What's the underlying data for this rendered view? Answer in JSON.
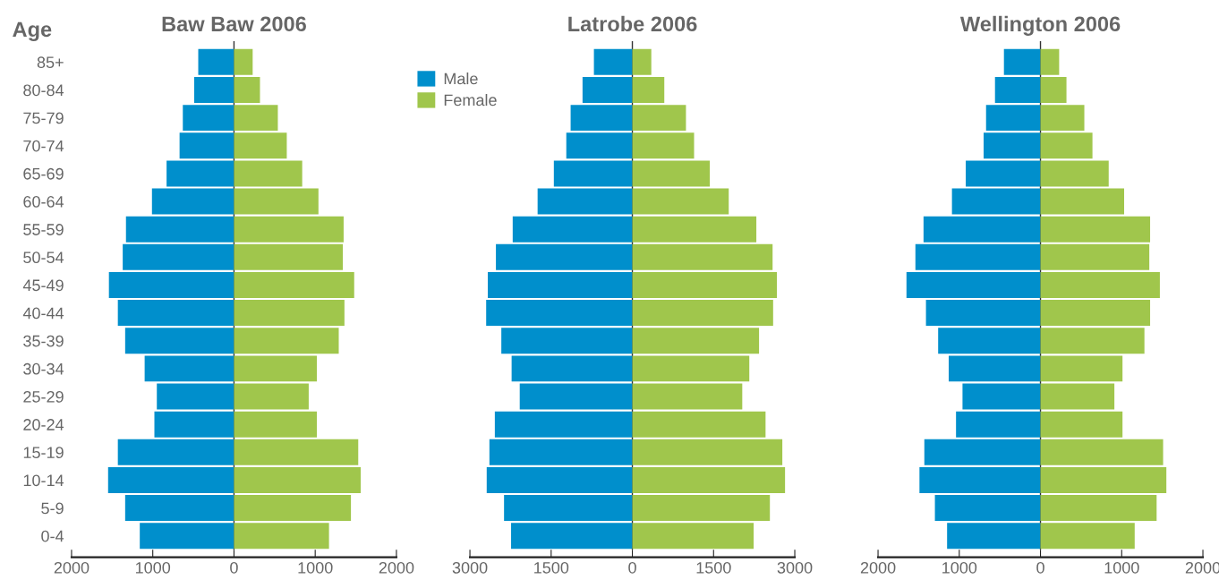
{
  "chart_data": [
    {
      "type": "bar",
      "orientation": "horizontal",
      "stacked": true,
      "title": "Baw Baw 2006",
      "ylabel": "Age",
      "categories": [
        "85+",
        "80-84",
        "75-79",
        "70-74",
        "65-69",
        "60-64",
        "55-59",
        "50-54",
        "45-49",
        "40-44",
        "35-39",
        "30-34",
        "25-29",
        "20-24",
        "15-19",
        "10-14",
        "5-9",
        "0-4"
      ],
      "series": [
        {
          "name": "Male",
          "color": "#008fcc",
          "values": [
            -440,
            -490,
            -630,
            -670,
            -830,
            -1010,
            -1330,
            -1370,
            -1540,
            -1430,
            -1340,
            -1100,
            -950,
            -980,
            -1430,
            -1550,
            -1340,
            -1160
          ]
        },
        {
          "name": "Female",
          "color": "#a0c64c",
          "values": [
            230,
            320,
            540,
            650,
            840,
            1040,
            1350,
            1340,
            1480,
            1360,
            1290,
            1020,
            920,
            1020,
            1530,
            1560,
            1440,
            1170
          ]
        }
      ],
      "xlim": [
        -2000,
        2000
      ],
      "xticks": [
        {
          "value": -2000,
          "label": "2000"
        },
        {
          "value": -1000,
          "label": "1000"
        },
        0,
        1000,
        2000
      ],
      "legend": "right"
    },
    {
      "type": "bar",
      "orientation": "horizontal",
      "stacked": true,
      "title": "Latrobe 2006",
      "categories": [
        null,
        null,
        null,
        null,
        null,
        null,
        null,
        null,
        null,
        null,
        null,
        null,
        null,
        null,
        null,
        null,
        null,
        null
      ],
      "series": [
        {
          "color": "#008fcc",
          "values": [
            -710,
            -920,
            -1140,
            -1220,
            -1450,
            -1750,
            -2210,
            -2520,
            -2670,
            -2700,
            -2420,
            -2230,
            -2080,
            -2540,
            -2640,
            -2690,
            -2370,
            -2240
          ]
        },
        {
          "color": "#a0c64c",
          "values": [
            350,
            590,
            990,
            1140,
            1430,
            1780,
            2290,
            2590,
            2670,
            2600,
            2340,
            2160,
            2030,
            2460,
            2770,
            2820,
            2540,
            2240
          ]
        }
      ],
      "xlim": [
        -3000,
        3000
      ],
      "xticks": [
        {
          "value": -3000,
          "label": "3000"
        },
        {
          "value": -1500,
          "label": "1500"
        },
        0,
        1500,
        3000
      ]
    },
    {
      "type": "bar",
      "orientation": "horizontal",
      "stacked": true,
      "title": "Wellington 2006",
      "categories": [
        null,
        null,
        null,
        null,
        null,
        null,
        null,
        null,
        null,
        null,
        null,
        null,
        null,
        null,
        null,
        null,
        null,
        null
      ],
      "series": [
        {
          "color": "#008fcc",
          "values": [
            -450,
            -560,
            -670,
            -700,
            -920,
            -1090,
            -1440,
            -1540,
            -1650,
            -1410,
            -1260,
            -1130,
            -960,
            -1040,
            -1430,
            -1490,
            -1300,
            -1150
          ]
        },
        {
          "color": "#a0c64c",
          "values": [
            230,
            320,
            540,
            640,
            840,
            1030,
            1350,
            1340,
            1470,
            1350,
            1280,
            1010,
            910,
            1010,
            1510,
            1550,
            1430,
            1160
          ]
        }
      ],
      "xlim": [
        -2000,
        2000
      ],
      "xticks": [
        {
          "value": -2000,
          "label": "2000"
        },
        {
          "value": -1000,
          "label": "1000"
        },
        0,
        1000,
        2000
      ]
    }
  ]
}
